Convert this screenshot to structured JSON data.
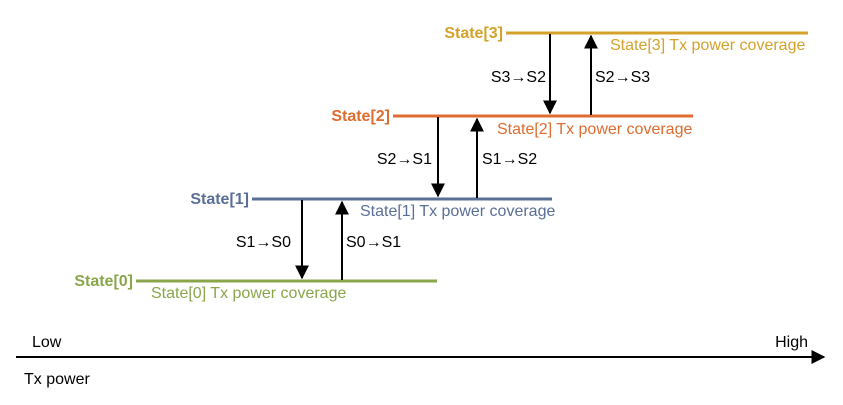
{
  "colors": {
    "state0": "#8aa64b",
    "state1": "#5a6f96",
    "state2": "#de6b2f",
    "state3": "#d4a22b",
    "axis": "#000000",
    "arrow": "#000000"
  },
  "states": [
    {
      "label": "State[0]",
      "coverage": "State[0] Tx power coverage"
    },
    {
      "label": "State[1]",
      "coverage": "State[1] Tx power coverage"
    },
    {
      "label": "State[2]",
      "coverage": "State[2] Tx power coverage"
    },
    {
      "label": "State[3]",
      "coverage": "State[3] Tx power coverage"
    }
  ],
  "transitions": {
    "s1_s0": "S1→S0",
    "s0_s1": "S0→S1",
    "s2_s1": "S2→S1",
    "s1_s2": "S1→S2",
    "s3_s2": "S3→S2",
    "s2_s3": "S2→S3"
  },
  "axis": {
    "low": "Low",
    "high": "High",
    "label": "Tx power"
  }
}
